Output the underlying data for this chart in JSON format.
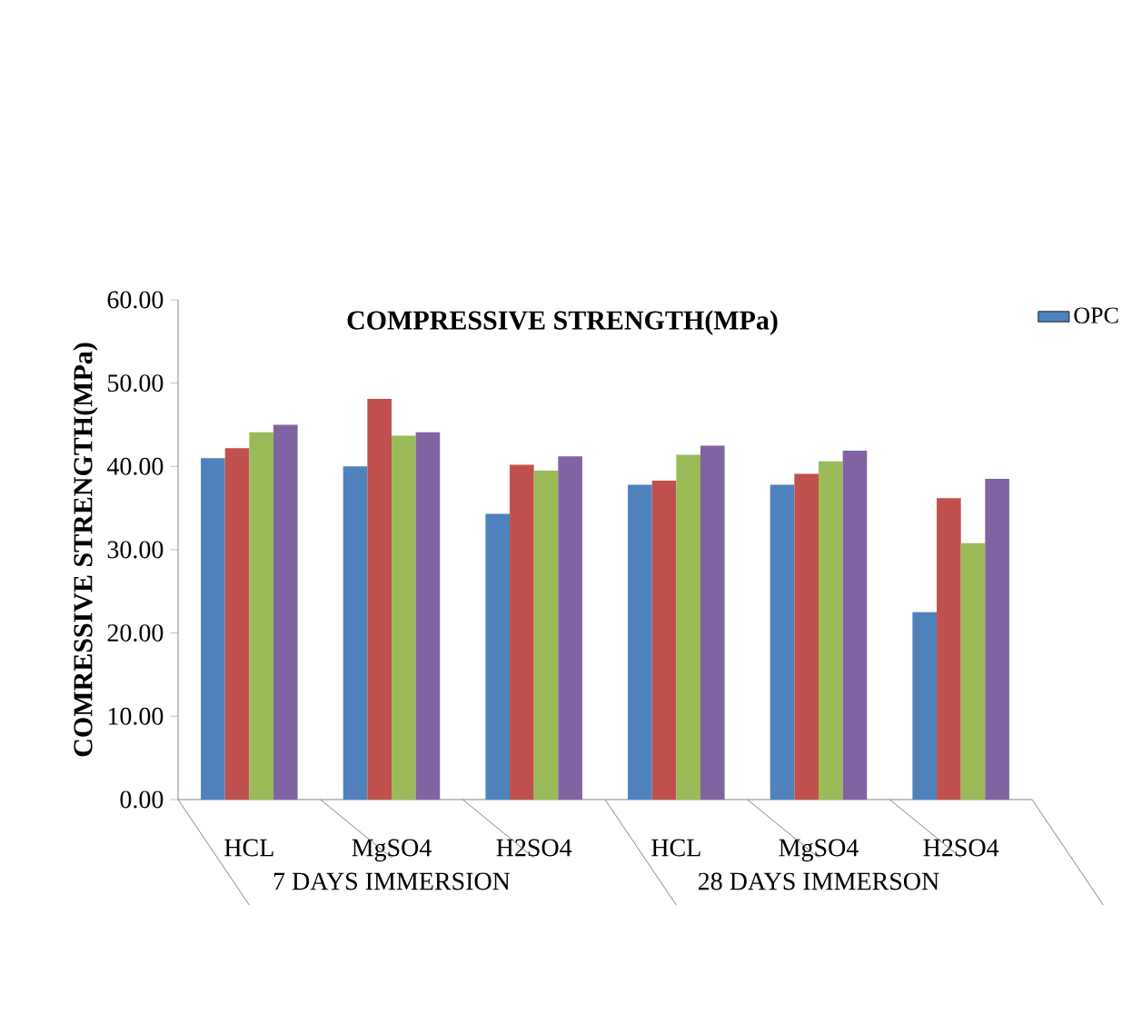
{
  "chart_data": {
    "type": "bar",
    "title": "COMPRESSIVE STRENGTH(MPa)",
    "ylabel": "COMRESSIVE STRENGTH(MPa)",
    "categories": [
      "HCL",
      "MgSO4",
      "H2SO4",
      "HCL",
      "MgSO4",
      "H2SO4"
    ],
    "annotations": [
      "7 DAYS IMMERSION",
      "28 DAYS IMMERSON"
    ],
    "series": [
      {
        "name": "OPC",
        "color": "#4f81bd",
        "values": [
          41.0,
          40.0,
          34.3,
          37.8,
          37.8,
          22.5
        ]
      },
      {
        "color": "#c0504d",
        "values": [
          42.2,
          48.1,
          40.2,
          38.3,
          39.1,
          36.2
        ]
      },
      {
        "color": "#9bbb59",
        "values": [
          44.1,
          43.7,
          39.5,
          41.4,
          40.6,
          30.8
        ]
      },
      {
        "color": "#8064a2",
        "values": [
          45.0,
          44.1,
          41.2,
          42.5,
          41.9,
          38.5
        ]
      }
    ],
    "ylim": [
      0,
      60
    ],
    "yticks": [
      {
        "value": 0,
        "label": "0.00"
      },
      {
        "value": 10,
        "label": "10.00"
      },
      {
        "value": 20,
        "label": "20.00"
      },
      {
        "value": 30,
        "label": "30.00"
      },
      {
        "value": 40,
        "label": "40.00"
      },
      {
        "value": 50,
        "label": "50.00"
      },
      {
        "value": 60,
        "label": "60.00"
      }
    ],
    "legend": "top right",
    "grid": false
  }
}
